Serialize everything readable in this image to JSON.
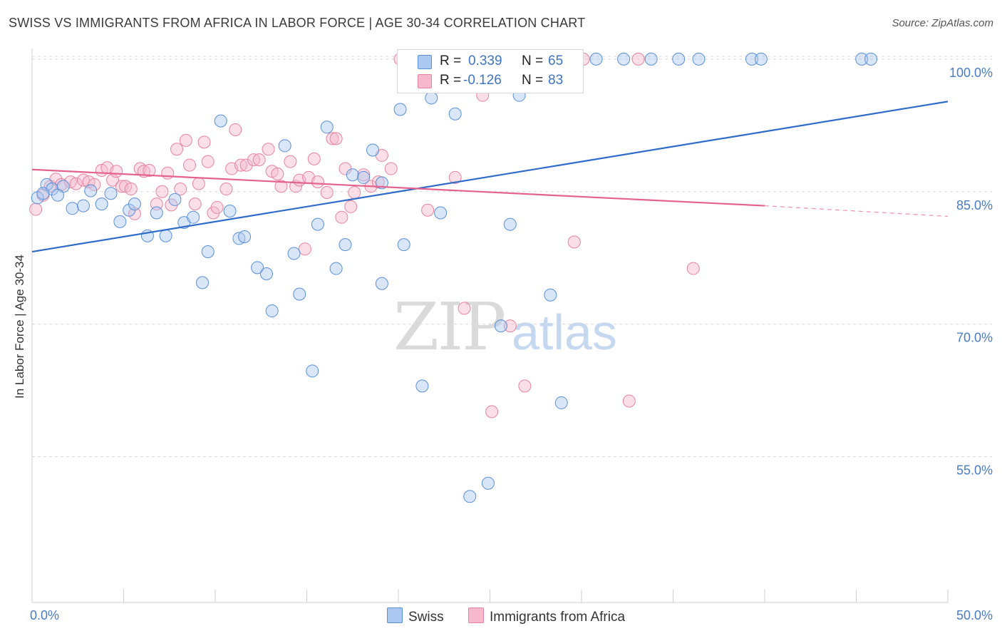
{
  "title": "SWISS VS IMMIGRANTS FROM AFRICA IN LABOR FORCE | AGE 30-34 CORRELATION CHART",
  "source": "Source: ZipAtlas.com",
  "watermark": {
    "zip": "ZIP",
    "atlas": "atlas"
  },
  "colors": {
    "swiss_fill": "#aac8f0",
    "swiss_stroke": "#5a8fd6",
    "swiss_line": "#2f6cc9",
    "africa_fill": "#f5b8cc",
    "africa_stroke": "#e6849f",
    "africa_line": "#e4628e",
    "grid": "#d8d8d8",
    "tick_text": "#4a7cc4"
  },
  "legend": {
    "r_label": "R =",
    "n_label": "N =",
    "swiss": {
      "r": "0.339",
      "n": "65"
    },
    "africa": {
      "r": "-0.126",
      "n": "83"
    }
  },
  "chart_data": {
    "type": "scatter",
    "xlabel": "",
    "ylabel": "In Labor Force | Age 30-34",
    "xlim": [
      0,
      50
    ],
    "ylim": [
      38.5,
      101.2
    ],
    "x_tick_labels": [
      "0.0%",
      "50.0%"
    ],
    "y_ticks": [
      55,
      70,
      85,
      100
    ],
    "y_tick_labels": [
      "55.0%",
      "70.0%",
      "85.0%",
      "100.0%"
    ],
    "grid": true,
    "legend_position": "bottom",
    "series": [
      {
        "name": "Swiss",
        "trendline": {
          "x": [
            0,
            50
          ],
          "y": [
            78.2,
            95.2
          ]
        },
        "points": [
          [
            0.3,
            84.3
          ],
          [
            0.8,
            85.8
          ],
          [
            1.1,
            85.3
          ],
          [
            1.7,
            85.6
          ],
          [
            2.2,
            83.1
          ],
          [
            2.8,
            83.4
          ],
          [
            3.2,
            85.1
          ],
          [
            3.8,
            83.6
          ],
          [
            4.3,
            84.8
          ],
          [
            4.8,
            81.6
          ],
          [
            5.3,
            82.9
          ],
          [
            5.6,
            83.6
          ],
          [
            6.3,
            80.0
          ],
          [
            6.8,
            82.6
          ],
          [
            7.3,
            80.0
          ],
          [
            7.8,
            84.1
          ],
          [
            8.3,
            81.5
          ],
          [
            8.8,
            82.1
          ],
          [
            9.6,
            78.2
          ],
          [
            9.3,
            74.7
          ],
          [
            10.3,
            93.0
          ],
          [
            10.8,
            82.8
          ],
          [
            11.3,
            79.7
          ],
          [
            11.6,
            79.9
          ],
          [
            12.3,
            76.4
          ],
          [
            12.8,
            75.7
          ],
          [
            13.1,
            71.5
          ],
          [
            13.8,
            90.2
          ],
          [
            14.3,
            78.0
          ],
          [
            14.6,
            73.4
          ],
          [
            15.3,
            64.7
          ],
          [
            15.6,
            81.3
          ],
          [
            16.1,
            92.3
          ],
          [
            16.6,
            76.3
          ],
          [
            17.1,
            79.0
          ],
          [
            17.5,
            86.9
          ],
          [
            18.1,
            86.6
          ],
          [
            18.6,
            89.7
          ],
          [
            19.1,
            86.0
          ],
          [
            19.1,
            74.6
          ],
          [
            20.1,
            94.3
          ],
          [
            20.3,
            79.0
          ],
          [
            21.3,
            63.0
          ],
          [
            21.8,
            95.6
          ],
          [
            22.3,
            82.6
          ],
          [
            23.1,
            93.8
          ],
          [
            23.9,
            50.5
          ],
          [
            24.0,
            100.0
          ],
          [
            24.9,
            52.0
          ],
          [
            25.6,
            69.8
          ],
          [
            26.6,
            95.9
          ],
          [
            26.1,
            81.3
          ],
          [
            28.3,
            73.3
          ],
          [
            28.9,
            61.1
          ],
          [
            30.8,
            100.0
          ],
          [
            32.3,
            100.0
          ],
          [
            33.8,
            100.0
          ],
          [
            35.3,
            100.0
          ],
          [
            36.4,
            100.0
          ],
          [
            39.3,
            100.0
          ],
          [
            39.8,
            100.0
          ],
          [
            45.3,
            100.0
          ],
          [
            45.8,
            100.0
          ],
          [
            0.6,
            84.8
          ],
          [
            1.4,
            84.6
          ]
        ]
      },
      {
        "name": "Immigrants from Africa",
        "trendline": {
          "x": [
            0,
            40
          ],
          "y": [
            87.5,
            83.4
          ]
        },
        "trendline_dashed": {
          "x": [
            40,
            50
          ],
          "y": [
            83.4,
            82.2
          ]
        },
        "points": [
          [
            0.2,
            83.0
          ],
          [
            0.6,
            84.6
          ],
          [
            1.0,
            85.6
          ],
          [
            1.3,
            86.4
          ],
          [
            1.6,
            85.8
          ],
          [
            2.1,
            86.1
          ],
          [
            2.4,
            85.9
          ],
          [
            2.8,
            86.3
          ],
          [
            3.1,
            86.1
          ],
          [
            3.4,
            85.8
          ],
          [
            3.8,
            87.4
          ],
          [
            4.1,
            87.7
          ],
          [
            4.4,
            86.3
          ],
          [
            4.6,
            87.3
          ],
          [
            4.9,
            85.6
          ],
          [
            5.1,
            85.6
          ],
          [
            5.4,
            85.3
          ],
          [
            5.6,
            82.5
          ],
          [
            5.9,
            87.6
          ],
          [
            6.1,
            87.3
          ],
          [
            6.4,
            87.4
          ],
          [
            6.8,
            83.6
          ],
          [
            7.1,
            85.0
          ],
          [
            7.4,
            87.1
          ],
          [
            7.6,
            83.5
          ],
          [
            7.9,
            89.8
          ],
          [
            8.1,
            85.3
          ],
          [
            8.4,
            90.8
          ],
          [
            8.6,
            88.0
          ],
          [
            8.9,
            83.6
          ],
          [
            9.1,
            85.9
          ],
          [
            9.4,
            90.6
          ],
          [
            9.6,
            88.4
          ],
          [
            9.9,
            82.6
          ],
          [
            10.1,
            83.2
          ],
          [
            10.6,
            85.3
          ],
          [
            10.9,
            87.6
          ],
          [
            11.1,
            92.0
          ],
          [
            11.4,
            88.0
          ],
          [
            11.7,
            88.0
          ],
          [
            12.1,
            88.6
          ],
          [
            12.4,
            88.6
          ],
          [
            12.9,
            89.8
          ],
          [
            13.1,
            87.3
          ],
          [
            13.4,
            87.0
          ],
          [
            13.6,
            85.6
          ],
          [
            14.1,
            88.4
          ],
          [
            14.4,
            85.6
          ],
          [
            14.6,
            86.3
          ],
          [
            14.9,
            78.5
          ],
          [
            15.1,
            86.6
          ],
          [
            15.4,
            88.7
          ],
          [
            15.6,
            86.1
          ],
          [
            16.1,
            84.9
          ],
          [
            16.4,
            91.0
          ],
          [
            16.6,
            91.0
          ],
          [
            16.9,
            82.1
          ],
          [
            17.1,
            87.6
          ],
          [
            17.4,
            83.3
          ],
          [
            17.6,
            84.9
          ],
          [
            18.1,
            86.9
          ],
          [
            18.5,
            85.6
          ],
          [
            18.9,
            86.1
          ],
          [
            19.1,
            89.1
          ],
          [
            19.6,
            87.6
          ],
          [
            20.1,
            100.0
          ],
          [
            20.6,
            100.0
          ],
          [
            21.1,
            100.0
          ],
          [
            21.6,
            82.9
          ],
          [
            22.1,
            100.0
          ],
          [
            22.6,
            100.0
          ],
          [
            23.1,
            86.6
          ],
          [
            23.6,
            71.8
          ],
          [
            24.6,
            95.9
          ],
          [
            25.1,
            60.1
          ],
          [
            26.1,
            69.8
          ],
          [
            26.9,
            63.0
          ],
          [
            27.1,
            100.0
          ],
          [
            29.6,
            79.3
          ],
          [
            30.1,
            100.0
          ],
          [
            32.6,
            61.3
          ],
          [
            33.1,
            100.0
          ],
          [
            36.1,
            76.3
          ]
        ]
      }
    ]
  },
  "bottom_legend": {
    "swiss": "Swiss",
    "africa": "Immigrants from Africa"
  }
}
